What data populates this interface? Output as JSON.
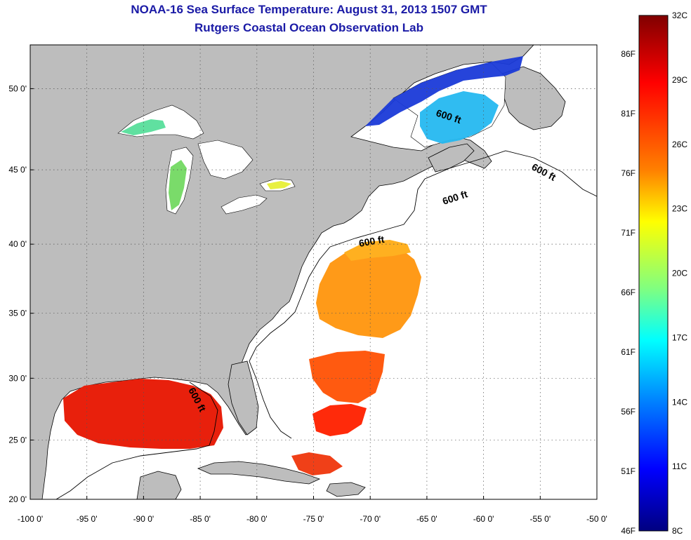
{
  "header": {
    "title": "NOAA-16 Sea Surface Temperature:  August 31, 2013 1507 GMT",
    "subtitle": "Rutgers Coastal Ocean Observation Lab"
  },
  "map": {
    "lon_range": [
      -100,
      -50
    ],
    "lat_range": [
      20,
      52.5
    ],
    "lon_ticks": [
      "-100 0'",
      "-95 0'",
      "-90 0'",
      "-85 0'",
      "-80 0'",
      "-75 0'",
      "-70 0'",
      "-65 0'",
      "-60 0'",
      "-55 0'",
      "-50 0'"
    ],
    "lat_ticks": [
      "20 0'",
      "25 0'",
      "30 0'",
      "35 0'",
      "40 0'",
      "45 0'",
      "50 0'"
    ],
    "grid": "dotted",
    "land_color": "#bdbdbd",
    "ocean_color": "#ffffff",
    "isobath_labels": [
      "600 ft",
      "600 ft",
      "600 ft",
      "600 ft",
      "600 ft"
    ]
  },
  "colorbar": {
    "celsius_labels": [
      "32C",
      "29C",
      "26C",
      "23C",
      "20C",
      "17C",
      "14C",
      "11C",
      "8C"
    ],
    "fahrenheit_labels": [
      "86F",
      "81F",
      "76F",
      "71F",
      "66F",
      "61F",
      "56F",
      "51F",
      "46F"
    ],
    "colors": [
      "#800000",
      "#ff0000",
      "#ff8000",
      "#ffff00",
      "#80ff80",
      "#00ffff",
      "#0080ff",
      "#0000ff",
      "#000080"
    ]
  }
}
